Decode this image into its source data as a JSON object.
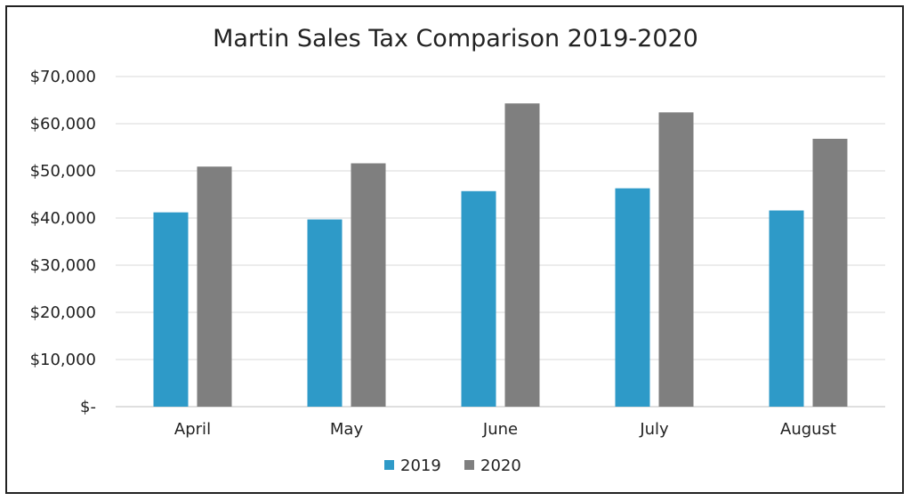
{
  "chart_data": {
    "type": "bar",
    "title": "Martin Sales Tax Comparison 2019-2020",
    "xlabel": "",
    "ylabel": "",
    "categories": [
      "April",
      "May",
      "June",
      "July",
      "August"
    ],
    "series": [
      {
        "name": "2019",
        "values": [
          41200,
          39700,
          45700,
          46300,
          41600
        ],
        "color": "#2e9ac8"
      },
      {
        "name": "2020",
        "values": [
          50900,
          51600,
          64300,
          62400,
          56800
        ],
        "color": "#7f7f7f"
      }
    ],
    "ylim": [
      0,
      70000
    ],
    "yticks": [
      0,
      10000,
      20000,
      30000,
      40000,
      50000,
      60000,
      70000
    ],
    "ytick_labels": [
      "$-",
      "$10,000",
      "$20,000",
      "$30,000",
      "$40,000",
      "$50,000",
      "$60,000",
      "$70,000"
    ],
    "grid": true,
    "legend_position": "bottom"
  }
}
